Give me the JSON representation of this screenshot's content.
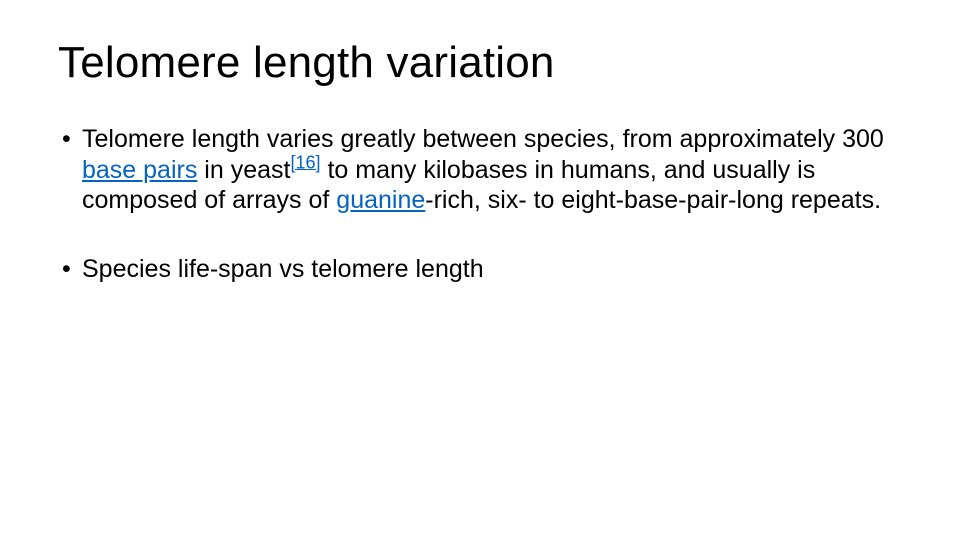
{
  "slide": {
    "title": "Telomere length variation",
    "bullets": [
      {
        "pre": "Telomere length varies greatly between species, from approximately 300 ",
        "link1": "base pairs",
        "mid1": " in yeast",
        "ref": "[16]",
        "mid2": " to many kilobases in humans, and usually is composed of arrays of ",
        "link2": "guanine",
        "post": "-rich, six- to eight-base-pair-long repeats."
      },
      {
        "text": "Species life-span vs telomere length"
      }
    ],
    "colors": {
      "background": "#ffffff",
      "text": "#000000",
      "link": "#0563c1"
    },
    "typography": {
      "title_fontsize": 44,
      "body_fontsize": 25,
      "font_weight": 300
    }
  }
}
